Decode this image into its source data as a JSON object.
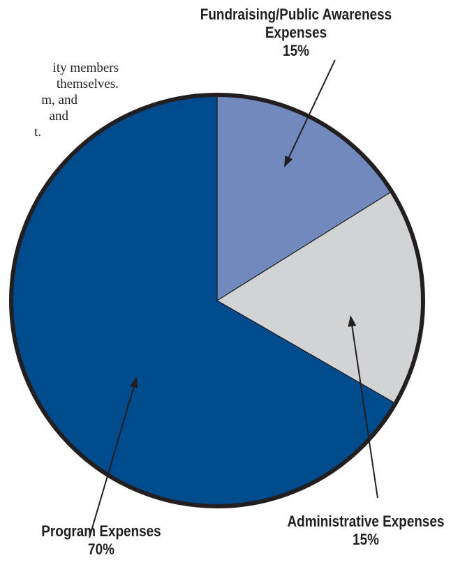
{
  "background_text": {
    "lines": [
      "ity members",
      "themselves.",
      "m, and",
      "and",
      "t."
    ]
  },
  "chart_data": {
    "type": "pie",
    "slices": [
      {
        "label": "Fundraising/Public Awareness Expenses",
        "value": 15,
        "value_label": "15%",
        "color": "#7189bd"
      },
      {
        "label": "Administrative Expenses",
        "value": 15,
        "value_label": "15%",
        "color": "#d2d3d5"
      },
      {
        "label": "Program Expenses",
        "value": 70,
        "value_label": "70%",
        "color": "#004b8d"
      }
    ],
    "colors": {
      "outline": "#231f20",
      "arrow": "#231f20"
    }
  },
  "labels": {
    "fundraising": {
      "line1": "Fundraising/Public Awareness",
      "line2": "Expenses",
      "pct": "15%"
    },
    "administrative": {
      "line1": "Administrative Expenses",
      "pct": "15%"
    },
    "program": {
      "line1": "Program Expenses",
      "pct": "70%"
    }
  }
}
